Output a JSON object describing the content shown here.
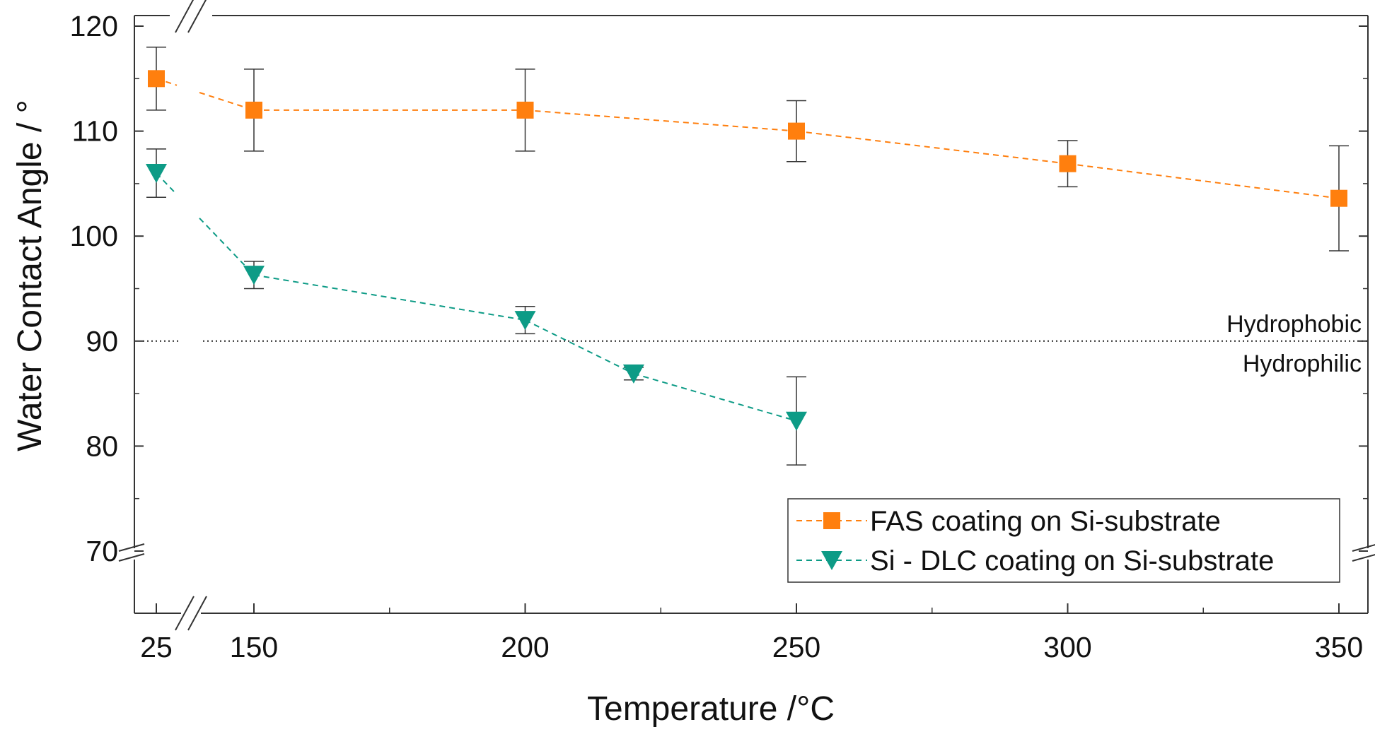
{
  "chart_data": {
    "type": "scatter",
    "xlabel": "Temperature /°C",
    "ylabel": "Water Contact Angle / °",
    "x_ticks": [
      25,
      150,
      200,
      250,
      300,
      350
    ],
    "y_ticks": [
      70,
      80,
      90,
      100,
      110,
      120
    ],
    "ylim": [
      64,
      120
    ],
    "x_break": [
      25,
      150
    ],
    "y_break": 70,
    "grid": false,
    "legend_position": "bottom-right",
    "reference_line": {
      "y": 90,
      "label_above": "Hydrophobic",
      "label_below": "Hydrophilic"
    },
    "series": [
      {
        "name": "FAS coating on Si-substrate",
        "marker": "square",
        "color": "#ff7f0e",
        "x": [
          25,
          150,
          200,
          250,
          300,
          350
        ],
        "y": [
          115,
          112,
          112,
          110,
          106.9,
          103.6
        ],
        "err": [
          3,
          3.9,
          3.9,
          2.9,
          2.2,
          5
        ]
      },
      {
        "name": "Si - DLC coating on Si-substrate",
        "marker": "triangle-down",
        "color": "#0d9b86",
        "x": [
          25,
          150,
          200,
          220,
          250
        ],
        "y": [
          106,
          96.3,
          92,
          86.9,
          82.4
        ],
        "err": [
          2.3,
          1.3,
          1.3,
          0.6,
          4.2
        ]
      }
    ]
  }
}
